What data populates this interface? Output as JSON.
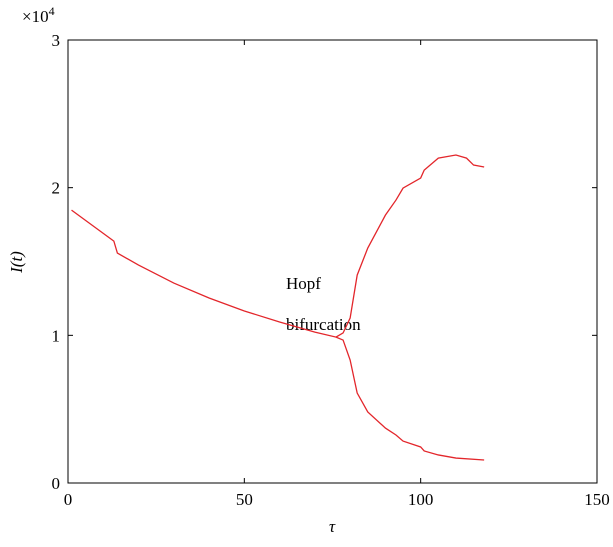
{
  "chart_data": {
    "type": "line",
    "x_label": "τ",
    "y_label": "I(t)",
    "y_multiplier": {
      "base": "×10",
      "exponent": "4"
    },
    "annotation": [
      "Hopf",
      "bifurcation"
    ],
    "xlim": [
      0,
      150
    ],
    "xticks": [
      0,
      50,
      100,
      150
    ],
    "ylim": [
      0,
      3
    ],
    "yticks": [
      0,
      1,
      2,
      3
    ],
    "series": [
      {
        "color": "#e3262b",
        "x": [
          1,
          13,
          14,
          20,
          30,
          40,
          50,
          60,
          70,
          76,
          78,
          80,
          82,
          85,
          90,
          93,
          95,
          100,
          101,
          105,
          110,
          113,
          115,
          118
        ],
        "values": [
          1.848,
          1.638,
          1.557,
          1.476,
          1.354,
          1.253,
          1.165,
          1.09,
          1.022,
          0.988,
          1.016,
          1.117,
          1.408,
          1.591,
          1.814,
          1.916,
          1.997,
          2.065,
          2.119,
          2.2,
          2.221,
          2.2,
          2.153,
          2.14
        ]
      },
      {
        "color": "#e3262b",
        "x": [
          76,
          78,
          80,
          82,
          85,
          90,
          93,
          95,
          100,
          101,
          105,
          110,
          118
        ],
        "values": [
          0.988,
          0.968,
          0.833,
          0.609,
          0.481,
          0.372,
          0.325,
          0.284,
          0.244,
          0.217,
          0.19,
          0.169,
          0.156
        ]
      }
    ]
  }
}
